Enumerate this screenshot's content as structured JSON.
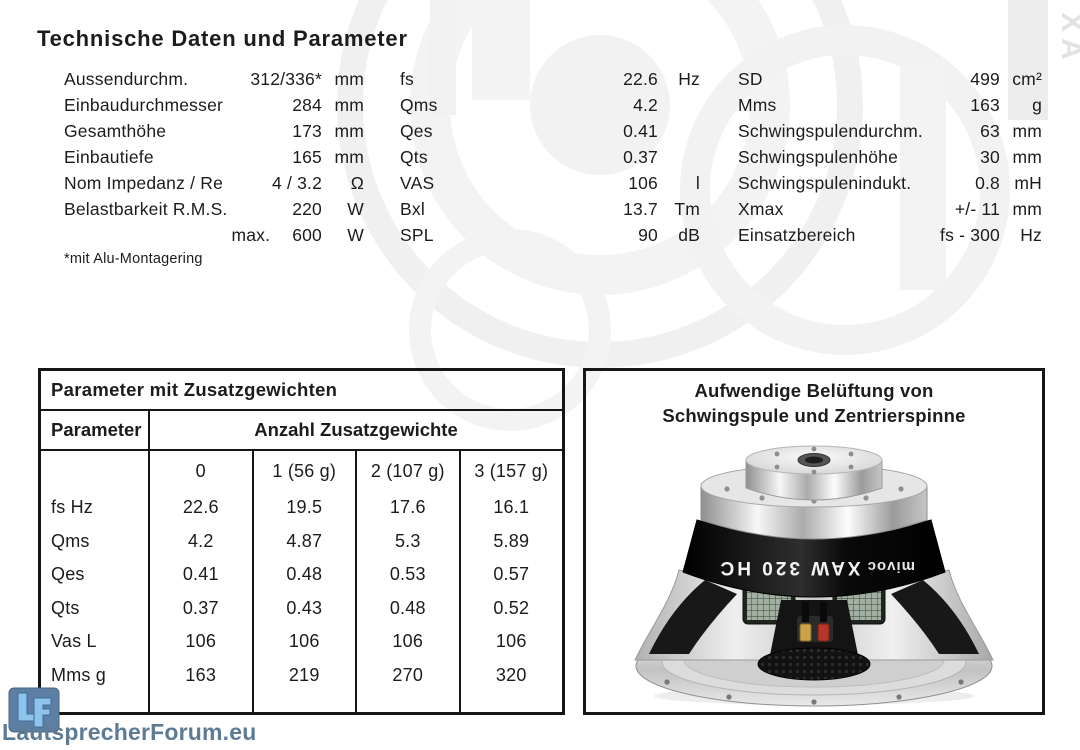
{
  "page": {
    "title": "Technische Daten und Parameter",
    "footnote": "*mit Alu-Montagering"
  },
  "specs": {
    "columns": [
      {
        "name": "dimensions-power",
        "rows": [
          {
            "label": "Aussendurchm.",
            "value": "312/336*",
            "unit": "mm"
          },
          {
            "label": "Einbaudurchmesser",
            "value": "284",
            "unit": "mm"
          },
          {
            "label": "Gesamthöhe",
            "value": "173",
            "unit": "mm"
          },
          {
            "label": "Einbautiefe",
            "value": "165",
            "unit": "mm"
          },
          {
            "label": "Nom Impedanz / Re",
            "value": "4 / 3.2",
            "unit": "Ω"
          },
          {
            "label": "Belastbarkeit R.M.S.",
            "value": "220",
            "unit": "W"
          },
          {
            "label": "max.",
            "value": "600",
            "unit": "W",
            "indent": true
          }
        ]
      },
      {
        "name": "thiele-small-parameters",
        "rows": [
          {
            "label": "fs",
            "value": "22.6",
            "unit": "Hz"
          },
          {
            "label": "Qms",
            "value": "4.2",
            "unit": ""
          },
          {
            "label": "Qes",
            "value": "0.41",
            "unit": ""
          },
          {
            "label": "Qts",
            "value": "0.37",
            "unit": ""
          },
          {
            "label": "VAS",
            "value": "106",
            "unit": "l"
          },
          {
            "label": "Bxl",
            "value": "13.7",
            "unit": "Tm"
          },
          {
            "label": "SPL",
            "value": "90",
            "unit": "dB"
          }
        ]
      },
      {
        "name": "voice-coil-parameters",
        "rows": [
          {
            "label": "SD",
            "value": "499",
            "unit": "cm²"
          },
          {
            "label": "Mms",
            "value": "163",
            "unit": "g"
          },
          {
            "label": "Schwingspulendurchm.",
            "value": "63",
            "unit": "mm"
          },
          {
            "label": "Schwingspulenhöhe",
            "value": "30",
            "unit": "mm"
          },
          {
            "label": "Schwingspulenindukt.",
            "value": "0.8",
            "unit": "mH"
          },
          {
            "label": "Xmax",
            "value": "+/- 11",
            "unit": "mm"
          },
          {
            "label": "Einsatzbereich",
            "value": "fs - 300",
            "unit": "Hz"
          }
        ]
      }
    ]
  },
  "weights_table": {
    "title": "Parameter mit Zusatzgewichten",
    "col_header": "Parameter",
    "group_header": "Anzahl Zusatzgewichte",
    "weight_headers": [
      "0",
      "1 (56 g)",
      "2 (107 g)",
      "3 (157 g)"
    ],
    "rows": [
      {
        "param": "fs Hz",
        "values": [
          "22.6",
          "19.5",
          "17.6",
          "16.1"
        ]
      },
      {
        "param": "Qms",
        "values": [
          "4.2",
          "4.87",
          "5.3",
          "5.89"
        ]
      },
      {
        "param": "Qes",
        "values": [
          "0.41",
          "0.48",
          "0.53",
          "0.57"
        ]
      },
      {
        "param": "Qts",
        "values": [
          "0.37",
          "0.43",
          "0.48",
          "0.52"
        ]
      },
      {
        "param": "Vas L",
        "values": [
          "106",
          "106",
          "106",
          "106"
        ]
      },
      {
        "param": "Mms g",
        "values": [
          "163",
          "219",
          "270",
          "320"
        ]
      }
    ]
  },
  "photo_panel": {
    "caption_line1": "Aufwendige Belüftung von",
    "caption_line2": "Schwingspule und Zentrierspinne",
    "speaker_label": "XAW 320 HC",
    "speaker_brand": "mivoc"
  },
  "watermark": {
    "text": "LautsprecherForum.eu",
    "logo_letters": "LF",
    "logo_color": "#5d7fa3",
    "letter_color": "#8ec3ec",
    "text_color": "#5e7b96"
  },
  "colors": {
    "text": "#1c1c1c",
    "border": "#151515",
    "background": "#ffffff",
    "watermark_gray": "#ececec"
  }
}
